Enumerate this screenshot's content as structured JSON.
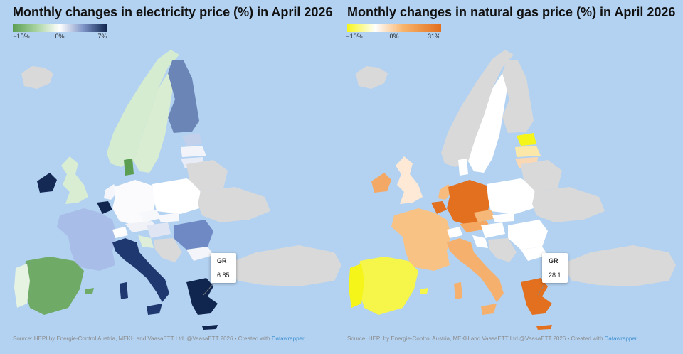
{
  "colors": {
    "sea": "#b3d2f1",
    "no_data": "#d9d9d9",
    "neutral": "#ffffff",
    "elec_low": "#5b9e52",
    "elec_high": "#10264f",
    "gas_low": "#f5f51a",
    "gas_high": "#e2701f"
  },
  "left": {
    "title": "Monthly changes in electricity price (%) in April 2026",
    "legend": {
      "min_label": "−15%",
      "mid_label": "0%",
      "max_label": "7%",
      "min": -15,
      "mid": 0,
      "max": 7
    },
    "tooltip": {
      "code": "GR",
      "value": "6.85"
    },
    "source_text": "Source: HEPI by Energie-Control Austria, MEKH and VaasaETT Ltd. @VaasaETT 2026 • Created with ",
    "source_link": "Datawrapper"
  },
  "right": {
    "title": "Monthly changes in natural gas price (%) in April 2026",
    "legend": {
      "min_label": "−10%",
      "mid_label": "0%",
      "max_label": "31%",
      "min": -10,
      "mid": 0,
      "max": 31
    },
    "tooltip": {
      "code": "GR",
      "value": "28.1"
    },
    "source_text": "Source: HEPI by Energie-Control Austria, MEKH and VaasaETT Ltd @VaasaETT 2026 • Created with ",
    "source_link": "Datawrapper"
  }
}
